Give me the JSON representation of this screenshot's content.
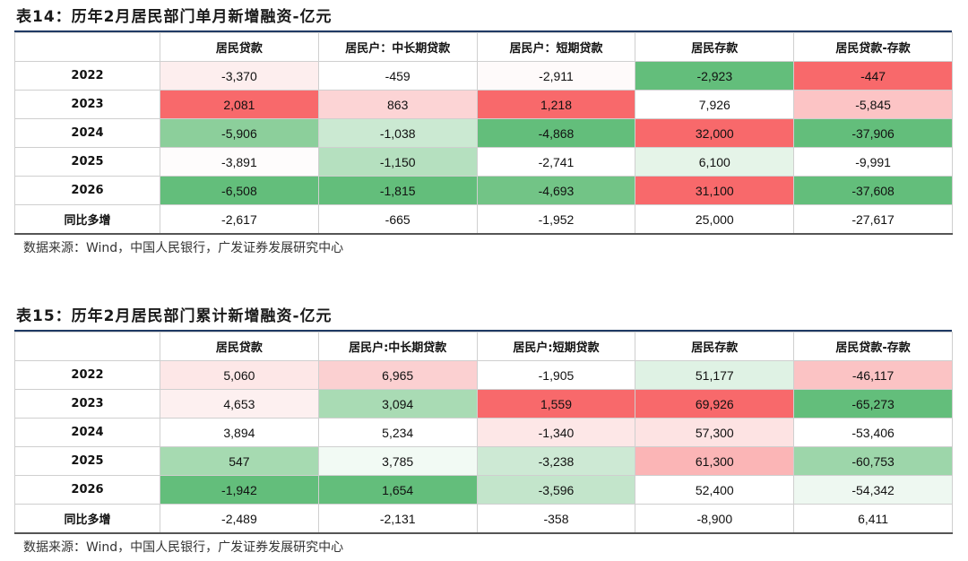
{
  "tables": [
    {
      "title": "表14：历年2月居民部门单月新增融资-亿元",
      "headers": [
        "",
        "居民贷款",
        "居民户：中长期贷款",
        "居民户：短期贷款",
        "居民存款",
        "居民贷款-存款"
      ],
      "rows": [
        {
          "label": "2022",
          "cells": [
            "-3,370",
            "-459",
            "-2,911",
            "-2,923",
            "-447"
          ],
          "colors": [
            "#fdeeee",
            "#ffffff",
            "#fefafa",
            "#63be7b",
            "#f8696b"
          ]
        },
        {
          "label": "2023",
          "cells": [
            "2,081",
            "863",
            "1,218",
            "7,926",
            "-5,845"
          ],
          "colors": [
            "#f8696b",
            "#fcd4d5",
            "#f8696b",
            "#ffffff",
            "#fcc4c5"
          ]
        },
        {
          "label": "2024",
          "cells": [
            "-5,906",
            "-1,038",
            "-4,868",
            "32,000",
            "-37,906"
          ],
          "colors": [
            "#8ccf9b",
            "#cbe9d2",
            "#63be7b",
            "#f8696b",
            "#63be7b"
          ]
        },
        {
          "label": "2025",
          "cells": [
            "-3,891",
            "-1,150",
            "-2,741",
            "6,100",
            "-9,991"
          ],
          "colors": [
            "#fefcfc",
            "#b5e0bf",
            "#ffffff",
            "#e5f4e8",
            "#ffffff"
          ]
        },
        {
          "label": "2026",
          "cells": [
            "-6,508",
            "-1,815",
            "-4,693",
            "31,100",
            "-37,608"
          ],
          "colors": [
            "#63be7b",
            "#63be7b",
            "#72c486",
            "#f8696b",
            "#63be7b"
          ]
        },
        {
          "label": "同比多增",
          "cells": [
            "-2,617",
            "-665",
            "-1,952",
            "25,000",
            "-27,617"
          ],
          "colors": [
            "#ffffff",
            "#ffffff",
            "#ffffff",
            "#ffffff",
            "#ffffff"
          ]
        }
      ],
      "source": "数据来源：Wind，中国人民银行，广发证券发展研究中心"
    },
    {
      "title": "表15：历年2月居民部门累计新增融资-亿元",
      "headers": [
        "",
        "居民贷款",
        "居民户:中长期贷款",
        "居民户:短期贷款",
        "居民存款",
        "居民贷款-存款"
      ],
      "rows": [
        {
          "label": "2022",
          "cells": [
            "5,060",
            "6,965",
            "-1,905",
            "51,177",
            "-46,117"
          ],
          "colors": [
            "#fde7e7",
            "#fbd0d1",
            "#ffffff",
            "#dff2e4",
            "#fbc3c4"
          ]
        },
        {
          "label": "2023",
          "cells": [
            "4,653",
            "3,094",
            "1,559",
            "69,926",
            "-65,273"
          ],
          "colors": [
            "#fdf0f0",
            "#a9dbb4",
            "#f8696b",
            "#f8696b",
            "#63be7b"
          ]
        },
        {
          "label": "2024",
          "cells": [
            "3,894",
            "5,234",
            "-1,340",
            "57,300",
            "-53,406"
          ],
          "colors": [
            "#ffffff",
            "#ffffff",
            "#fde7e7",
            "#fde3e3",
            "#ffffff"
          ]
        },
        {
          "label": "2025",
          "cells": [
            "547",
            "3,785",
            "-3,238",
            "61,300",
            "-60,753"
          ],
          "colors": [
            "#a6dab1",
            "#f2faf4",
            "#cde9d4",
            "#fbb5b6",
            "#9dd6aa"
          ]
        },
        {
          "label": "2026",
          "cells": [
            "-1,942",
            "1,654",
            "-3,596",
            "52,400",
            "-54,342"
          ],
          "colors": [
            "#63be7b",
            "#63be7b",
            "#c3e5cb",
            "#ffffff",
            "#eef8f1"
          ]
        },
        {
          "label": "同比多增",
          "cells": [
            "-2,489",
            "-2,131",
            "-358",
            "-8,900",
            "6,411"
          ],
          "colors": [
            "#ffffff",
            "#ffffff",
            "#ffffff",
            "#ffffff",
            "#ffffff"
          ]
        }
      ],
      "source": "数据来源：Wind，中国人民银行，广发证券发展研究中心"
    }
  ]
}
